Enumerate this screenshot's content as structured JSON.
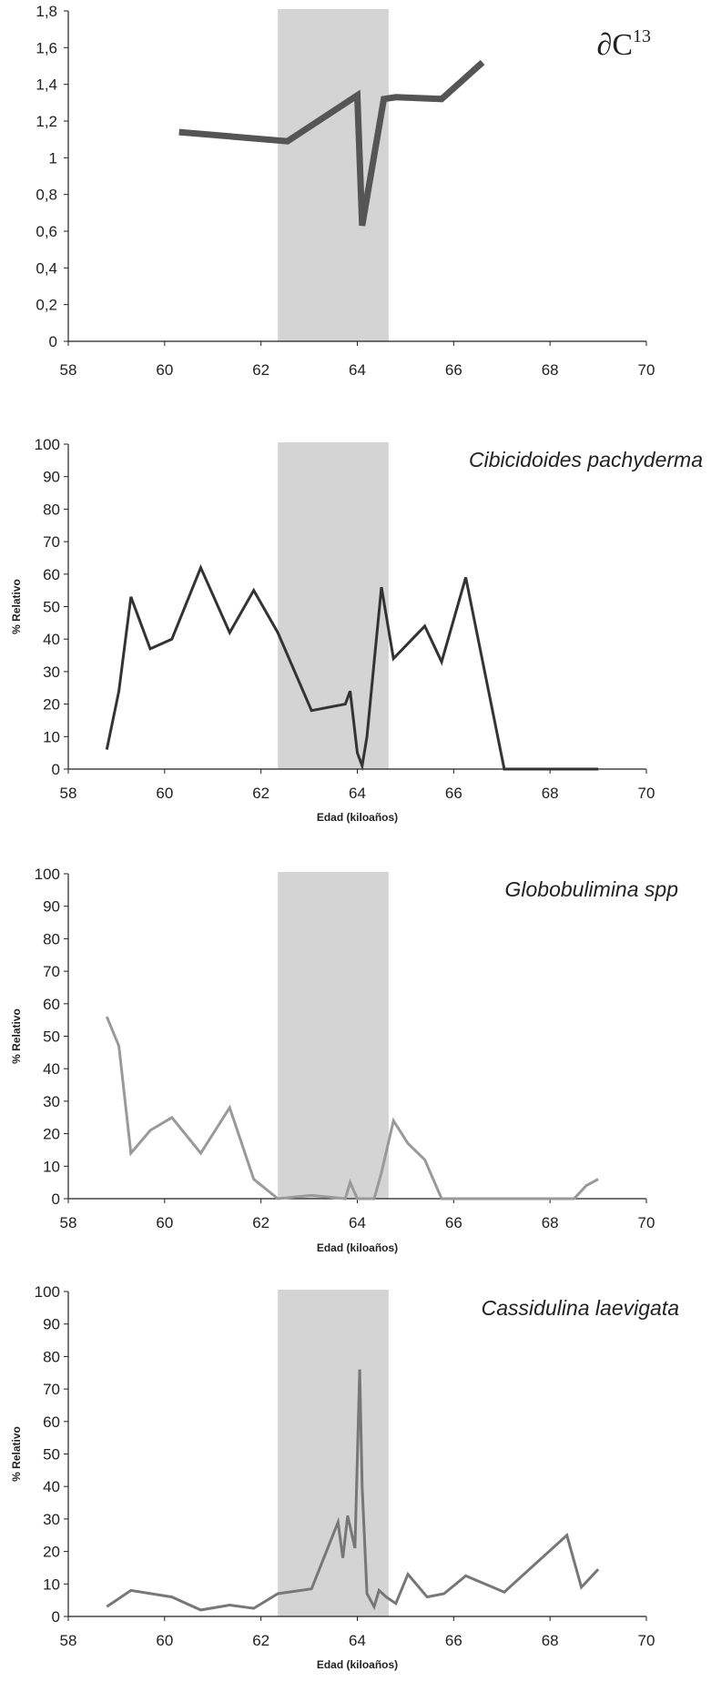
{
  "chart_data": [
    {
      "type": "line",
      "title": "∂C",
      "title_sup": "13",
      "xlabel": "",
      "ylabel": "",
      "xlim": [
        58,
        70
      ],
      "ylim": [
        0,
        1.8
      ],
      "xticks": [
        58,
        60,
        62,
        64,
        66,
        68,
        70
      ],
      "yticks": [
        0,
        0.2,
        0.4,
        0.6,
        0.8,
        1,
        1.2,
        1.4,
        1.6,
        1.8
      ],
      "ytick_labels": [
        "0",
        "0,2",
        "0,4",
        "0,6",
        "0,8",
        "1",
        "1,2",
        "1,4",
        "1,6",
        "1,8"
      ],
      "shaded_x": [
        62.35,
        64.65
      ],
      "line_color": "#555555",
      "series": [
        {
          "x": [
            60.3,
            62.55,
            64.0,
            64.1,
            64.55,
            64.8,
            65.75,
            66.6
          ],
          "y": [
            1.14,
            1.09,
            1.34,
            0.63,
            1.32,
            1.33,
            1.32,
            1.52
          ]
        }
      ]
    },
    {
      "type": "line",
      "title": "Cibicidoides pachyderma",
      "xlabel": "Edad (kiloaños)",
      "ylabel": "% Relativo",
      "xlim": [
        58,
        70
      ],
      "ylim": [
        0,
        100
      ],
      "xticks": [
        58,
        60,
        62,
        64,
        66,
        68,
        70
      ],
      "yticks": [
        0,
        10,
        20,
        30,
        40,
        50,
        60,
        70,
        80,
        90,
        100
      ],
      "shaded_x": [
        62.35,
        64.65
      ],
      "line_color": "#333333",
      "series": [
        {
          "x": [
            58.8,
            59.05,
            59.3,
            59.7,
            60.15,
            60.75,
            61.35,
            61.85,
            62.35,
            63.05,
            63.75,
            63.85,
            64.0,
            64.1,
            64.2,
            64.35,
            64.5,
            64.75,
            65.4,
            65.75,
            66.25,
            67.05,
            69.0
          ],
          "y": [
            6,
            24,
            53,
            37,
            40,
            62,
            42,
            55,
            42,
            18,
            20,
            24,
            5,
            1,
            10,
            33,
            56,
            34,
            44,
            33,
            59,
            0,
            0
          ]
        }
      ]
    },
    {
      "type": "line",
      "title": "Globobulimina spp",
      "xlabel": "Edad (kiloaños)",
      "ylabel": "% Relativo",
      "xlim": [
        58,
        70
      ],
      "ylim": [
        0,
        100
      ],
      "xticks": [
        58,
        60,
        62,
        64,
        66,
        68,
        70
      ],
      "yticks": [
        0,
        10,
        20,
        30,
        40,
        50,
        60,
        70,
        80,
        90,
        100
      ],
      "shaded_x": [
        62.35,
        64.65
      ],
      "line_color": "#999999",
      "series": [
        {
          "x": [
            58.8,
            59.05,
            59.3,
            59.7,
            60.15,
            60.75,
            61.35,
            61.85,
            62.35,
            63.05,
            63.75,
            63.85,
            64.0,
            64.1,
            64.2,
            64.35,
            64.5,
            64.75,
            65.05,
            65.4,
            65.75,
            66.25,
            67.05,
            68.5,
            68.75,
            69.0
          ],
          "y": [
            56,
            47,
            14,
            21,
            25,
            14,
            28,
            6,
            0,
            1,
            0,
            5,
            0,
            0,
            0,
            0,
            8,
            24,
            17,
            12,
            0,
            0,
            0,
            0,
            4,
            6
          ]
        }
      ]
    },
    {
      "type": "line",
      "title": "Cassidulina laevigata",
      "xlabel": "Edad (kiloaños)",
      "ylabel": "% Relativo",
      "xlim": [
        58,
        70
      ],
      "ylim": [
        0,
        100
      ],
      "xticks": [
        58,
        60,
        62,
        64,
        66,
        68,
        70
      ],
      "yticks": [
        0,
        10,
        20,
        30,
        40,
        50,
        60,
        70,
        80,
        90,
        100
      ],
      "shaded_x": [
        62.35,
        64.65
      ],
      "line_color": "#777777",
      "series": [
        {
          "x": [
            58.8,
            59.3,
            60.15,
            60.75,
            61.35,
            61.85,
            62.35,
            63.05,
            63.6,
            63.7,
            63.8,
            63.95,
            64.05,
            64.1,
            64.2,
            64.35,
            64.45,
            64.6,
            64.8,
            65.05,
            65.45,
            65.8,
            66.25,
            67.05,
            68.35,
            68.65,
            69.0
          ],
          "y": [
            3,
            8,
            6,
            2,
            3.5,
            2.5,
            7,
            8.5,
            29,
            18,
            31,
            21,
            76,
            40,
            7,
            3,
            8,
            6,
            4,
            13,
            6,
            7,
            12.5,
            7.5,
            25,
            9,
            14.5
          ]
        }
      ]
    }
  ]
}
